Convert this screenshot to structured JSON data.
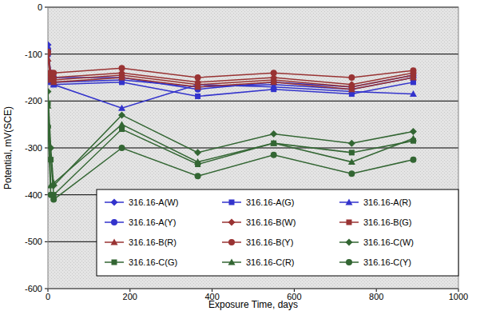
{
  "chart_data": {
    "type": "line",
    "x_label": "Exposure Time, days",
    "y_label": "Potential, mV(SCE)",
    "x": [
      0,
      7,
      14,
      180,
      365,
      550,
      740,
      890
    ],
    "xlim": [
      0,
      1000
    ],
    "xticks": [
      0,
      200,
      400,
      600,
      800,
      1000
    ],
    "ylim": [
      -600,
      0
    ],
    "yticks": [
      -600,
      -500,
      -400,
      -300,
      -200,
      -100,
      0
    ],
    "grid": true,
    "legend": "bottom",
    "series": [
      {
        "name": "316.16-A(W)",
        "color": "#3333cc",
        "marker": "diamond",
        "values": [
          -80,
          -150,
          -160,
          -155,
          -170,
          -165,
          -175,
          -150
        ]
      },
      {
        "name": "316.16-A(G)",
        "color": "#3333cc",
        "marker": "square",
        "values": [
          -100,
          -160,
          -165,
          -160,
          -190,
          -175,
          -185,
          -160
        ]
      },
      {
        "name": "316.16-A(R)",
        "color": "#3333cc",
        "marker": "triangle",
        "values": [
          -95,
          -150,
          -165,
          -215,
          -165,
          -170,
          -180,
          -185
        ]
      },
      {
        "name": "316.16-A(Y)",
        "color": "#3333cc",
        "marker": "circle",
        "values": [
          -90,
          -140,
          -150,
          -150,
          -175,
          -160,
          -170,
          -145
        ]
      },
      {
        "name": "316.16-B(W)",
        "color": "#993333",
        "marker": "diamond",
        "values": [
          -100,
          -145,
          -150,
          -140,
          -160,
          -150,
          -165,
          -140
        ]
      },
      {
        "name": "316.16-B(G)",
        "color": "#993333",
        "marker": "square",
        "values": [
          -140,
          -150,
          -155,
          -145,
          -165,
          -155,
          -170,
          -145
        ]
      },
      {
        "name": "316.16-B(R)",
        "color": "#993333",
        "marker": "triangle",
        "values": [
          -110,
          -155,
          -160,
          -150,
          -170,
          -160,
          -175,
          -150
        ]
      },
      {
        "name": "316.16-B(Y)",
        "color": "#993333",
        "marker": "circle",
        "values": [
          -95,
          -140,
          -140,
          -130,
          -150,
          -140,
          -150,
          -135
        ]
      },
      {
        "name": "316.16-C(W)",
        "color": "#336633",
        "marker": "diamond",
        "values": [
          -180,
          -300,
          -380,
          -230,
          -310,
          -270,
          -290,
          -265
        ]
      },
      {
        "name": "316.16-C(G)",
        "color": "#336633",
        "marker": "square",
        "values": [
          -205,
          -325,
          -400,
          -260,
          -335,
          -290,
          -310,
          -285
        ]
      },
      {
        "name": "316.16-C(R)",
        "color": "#336633",
        "marker": "triangle",
        "values": [
          -210,
          -380,
          -375,
          -250,
          -330,
          -290,
          -330,
          -280
        ]
      },
      {
        "name": "316.16-C(Y)",
        "color": "#336633",
        "marker": "circle",
        "values": [
          -255,
          -400,
          -410,
          -300,
          -360,
          -315,
          -355,
          -325
        ]
      }
    ]
  }
}
